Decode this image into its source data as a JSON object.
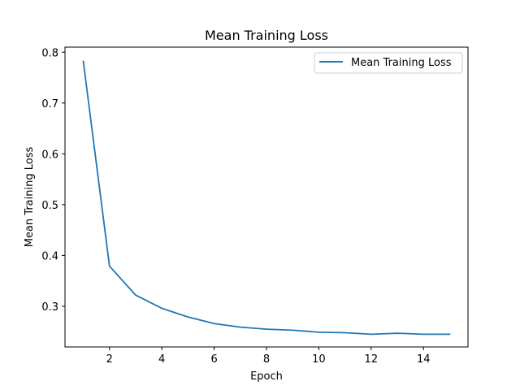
{
  "chart_data": {
    "type": "line",
    "title": "Mean Training Loss",
    "xlabel": "Epoch",
    "ylabel": "Mean Training Loss",
    "xlim": [
      0.3,
      15.7
    ],
    "ylim": [
      0.22,
      0.81
    ],
    "xticks": [
      2,
      4,
      6,
      8,
      10,
      12,
      14
    ],
    "yticks": [
      0.3,
      0.4,
      0.5,
      0.6,
      0.7,
      0.8
    ],
    "grid": false,
    "legend_position": "top-right",
    "series": [
      {
        "name": "Mean Training Loss",
        "color": "#1f77b4",
        "x": [
          1,
          2,
          3,
          4,
          5,
          6,
          7,
          8,
          9,
          10,
          11,
          12,
          13,
          14,
          15
        ],
        "y": [
          0.782,
          0.379,
          0.322,
          0.296,
          0.279,
          0.266,
          0.259,
          0.255,
          0.253,
          0.249,
          0.248,
          0.245,
          0.247,
          0.245,
          0.245
        ]
      }
    ]
  }
}
